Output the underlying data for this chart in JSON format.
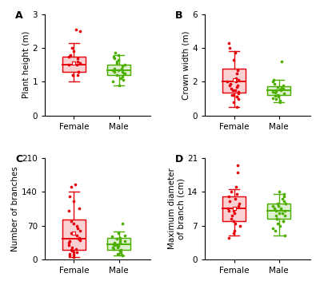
{
  "panels": [
    {
      "label": "A",
      "ylabel": "Plant height (m)",
      "ylim": [
        0,
        3
      ],
      "yticks": [
        0,
        1,
        2,
        3
      ],
      "female_data": [
        1.2,
        1.2,
        1.3,
        1.5,
        1.5,
        1.55,
        1.6,
        1.7,
        1.75,
        1.9,
        2.0,
        2.5,
        2.55,
        1.3,
        1.2,
        1.8
      ],
      "male_data": [
        0.9,
        1.0,
        1.05,
        1.1,
        1.15,
        1.2,
        1.25,
        1.25,
        1.3,
        1.3,
        1.35,
        1.35,
        1.4,
        1.4,
        1.45,
        1.5,
        1.55,
        1.6,
        1.65,
        1.7,
        1.75,
        1.8,
        1.85
      ],
      "female_box": {
        "q1": 1.3,
        "median": 1.5,
        "q3": 1.75,
        "whisker_low": 1.0,
        "whisker_high": 2.15
      },
      "male_box": {
        "q1": 1.2,
        "median": 1.35,
        "q3": 1.5,
        "whisker_low": 0.9,
        "whisker_high": 1.8
      },
      "female_mean": 1.55,
      "male_mean": null
    },
    {
      "label": "B",
      "ylabel": "Crown width (m)",
      "ylim": [
        0,
        6
      ],
      "yticks": [
        0,
        2,
        4,
        6
      ],
      "female_data": [
        0.5,
        0.8,
        1.0,
        1.1,
        1.2,
        1.3,
        1.4,
        1.5,
        1.6,
        1.7,
        1.8,
        1.9,
        2.0,
        2.1,
        2.2,
        2.5,
        2.7,
        3.3,
        3.7,
        4.0,
        4.3,
        1.1,
        1.2,
        1.5,
        1.8,
        2.0
      ],
      "male_data": [
        0.8,
        0.9,
        1.0,
        1.05,
        1.1,
        1.15,
        1.2,
        1.3,
        1.35,
        1.4,
        1.45,
        1.5,
        1.5,
        1.55,
        1.6,
        1.65,
        1.7,
        1.8,
        1.9,
        2.0,
        2.1,
        3.2
      ],
      "female_box": {
        "q1": 1.35,
        "median": 2.0,
        "q3": 2.8,
        "whisker_low": 0.5,
        "whisker_high": 3.8
      },
      "male_box": {
        "q1": 1.2,
        "median": 1.5,
        "q3": 1.75,
        "whisker_low": 0.8,
        "whisker_high": 2.1
      },
      "female_mean": 2.1,
      "male_mean": null
    },
    {
      "label": "C",
      "ylabel": "Number of branches",
      "ylim": [
        0,
        210
      ],
      "yticks": [
        0,
        70,
        140,
        210
      ],
      "female_data": [
        5,
        8,
        10,
        12,
        15,
        15,
        18,
        20,
        22,
        25,
        30,
        35,
        40,
        45,
        50,
        55,
        60,
        65,
        70,
        75,
        80,
        100,
        105,
        120,
        130,
        150,
        155,
        38,
        42
      ],
      "male_data": [
        8,
        10,
        12,
        15,
        18,
        20,
        22,
        25,
        25,
        28,
        30,
        30,
        32,
        35,
        35,
        38,
        40,
        42,
        45,
        48,
        50,
        55,
        75
      ],
      "female_box": {
        "q1": 20,
        "median": 42,
        "q3": 82,
        "whisker_low": 5,
        "whisker_high": 140
      },
      "male_box": {
        "q1": 20,
        "median": 32,
        "q3": 45,
        "whisker_low": 8,
        "whisker_high": 58
      },
      "female_mean": 55,
      "male_mean": null
    },
    {
      "label": "D",
      "ylabel": "Maximum diameter\nof branch (cm)",
      "ylim": [
        0,
        21
      ],
      "yticks": [
        0,
        7,
        14,
        21
      ],
      "female_data": [
        4.5,
        5.5,
        6,
        7,
        7.5,
        8,
        8.5,
        9,
        9.5,
        10,
        10.5,
        11,
        11.5,
        12,
        12.5,
        13,
        13.5,
        14,
        15,
        18,
        19.5,
        10
      ],
      "male_data": [
        5,
        6,
        6.5,
        7,
        7.5,
        8,
        8,
        8.5,
        9,
        9,
        9.5,
        10,
        10,
        10.5,
        11,
        11,
        11.5,
        12,
        12.5,
        13,
        13.5,
        14,
        8.5,
        9.5,
        10.5,
        11.5
      ],
      "female_box": {
        "q1": 8,
        "median": 10.5,
        "q3": 13,
        "whisker_low": 5,
        "whisker_high": 14.5
      },
      "male_box": {
        "q1": 8.5,
        "median": 10,
        "q3": 11.5,
        "whisker_low": 5,
        "whisker_high": 13.5
      },
      "female_mean": 10.5,
      "male_mean": null
    }
  ],
  "female_color": "#e8000b",
  "male_color": "#4caf00",
  "jitter_seed": 42,
  "bg_color": "#f5f5f5"
}
